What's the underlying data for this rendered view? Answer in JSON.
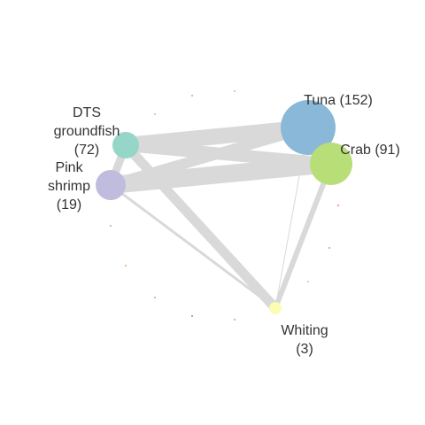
{
  "nodes": [
    {
      "id": "tuna",
      "lines": [
        "Tuna (152)"
      ],
      "color": "#8ab8d8"
    },
    {
      "id": "crab",
      "lines": [
        "Crab (91)"
      ],
      "color": "#b8de78"
    },
    {
      "id": "dts",
      "lines": [
        "DTS",
        "groundfish",
        "(72)"
      ],
      "color": "#96d6c8"
    },
    {
      "id": "shrimp",
      "lines": [
        "Pink",
        "shrimp",
        "(19)"
      ],
      "color": "#c0bcde"
    },
    {
      "id": "whiting",
      "lines": [
        "Whiting",
        "(3)"
      ],
      "color": "#fcfcb4"
    }
  ],
  "edges": [
    {
      "from": "dts",
      "to": "tuna"
    },
    {
      "from": "dts",
      "to": "crab"
    },
    {
      "from": "shrimp",
      "to": "tuna"
    },
    {
      "from": "shrimp",
      "to": "crab"
    },
    {
      "from": "dts",
      "to": "shrimp"
    },
    {
      "from": "dts",
      "to": "whiting"
    },
    {
      "from": "shrimp",
      "to": "whiting"
    },
    {
      "from": "crab",
      "to": "whiting"
    },
    {
      "from": "tuna",
      "to": "whiting"
    },
    {
      "from": "tuna",
      "to": "crab"
    }
  ],
  "colors": {
    "edge": "#d9d9d9",
    "label": "#333333"
  }
}
